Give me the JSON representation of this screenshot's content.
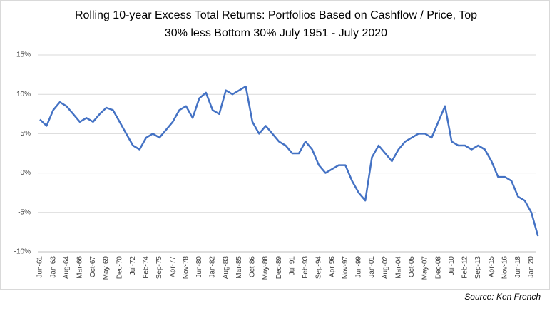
{
  "chart_data": {
    "type": "line",
    "title": [
      "Rolling 10-year Excess Total Returns:  Portfolios Based on Cashflow / Price, Top",
      "30% less Bottom 30% July 1951 - July 2020"
    ],
    "source": "Source:  Ken French",
    "categories": [
      "Jun-61",
      null,
      "Jan-63",
      null,
      "Aug-64",
      null,
      "Mar-66",
      null,
      "Oct-67",
      null,
      "May-69",
      null,
      "Dec-70",
      null,
      "Jul-72",
      null,
      "Feb-74",
      null,
      "Sep-75",
      null,
      "Apr-77",
      null,
      "Nov-78",
      null,
      "Jun-80",
      null,
      "Jan-82",
      null,
      "Aug-83",
      null,
      "Mar-85",
      null,
      "Oct-86",
      null,
      "May-88",
      null,
      "Dec-89",
      null,
      "Jul-91",
      null,
      "Feb-93",
      null,
      "Sep-94",
      null,
      "Apr-96",
      null,
      "Nov-97",
      null,
      "Jun-99",
      null,
      "Jan-01",
      null,
      "Aug-02",
      null,
      "Mar-04",
      null,
      "Oct-05",
      null,
      "May-07",
      null,
      "Dec-08",
      null,
      "Jul-10",
      null,
      "Feb-12",
      null,
      "Sep-13",
      null,
      "Apr-15",
      null,
      "Nov-16",
      null,
      "Jun-18",
      null,
      "Jan-20",
      null
    ],
    "values": [
      6.8,
      6.0,
      8.0,
      9.0,
      8.5,
      7.5,
      6.5,
      7.0,
      6.5,
      7.5,
      8.3,
      8.0,
      6.5,
      5.0,
      3.5,
      3.0,
      4.5,
      5.0,
      4.5,
      5.5,
      6.5,
      8.0,
      8.5,
      7.0,
      9.5,
      10.2,
      8.0,
      7.5,
      10.5,
      10.0,
      10.5,
      11.0,
      6.5,
      5.0,
      6.0,
      5.0,
      4.0,
      3.5,
      2.5,
      2.5,
      4.0,
      3.0,
      1.0,
      0.0,
      0.5,
      1.0,
      1.0,
      -1.0,
      -2.5,
      -3.5,
      2.0,
      3.5,
      2.5,
      1.5,
      3.0,
      4.0,
      4.5,
      5.0,
      5.0,
      4.5,
      6.5,
      8.5,
      4.0,
      3.5,
      3.5,
      3.0,
      3.5,
      3.0,
      1.5,
      -0.5,
      -0.5,
      -1.0,
      -3.0,
      -3.5,
      -5.0,
      -8.0
    ],
    "color": "#4472c4",
    "ylim": [
      -10,
      15
    ],
    "yticks": [
      {
        "value": -10,
        "label": "-10%"
      },
      {
        "value": -5,
        "label": "-5%"
      },
      {
        "value": 0,
        "label": "0%"
      },
      {
        "value": 5,
        "label": "5%"
      },
      {
        "value": 10,
        "label": "10%"
      },
      {
        "value": 15,
        "label": "15%"
      }
    ],
    "grid": true
  }
}
